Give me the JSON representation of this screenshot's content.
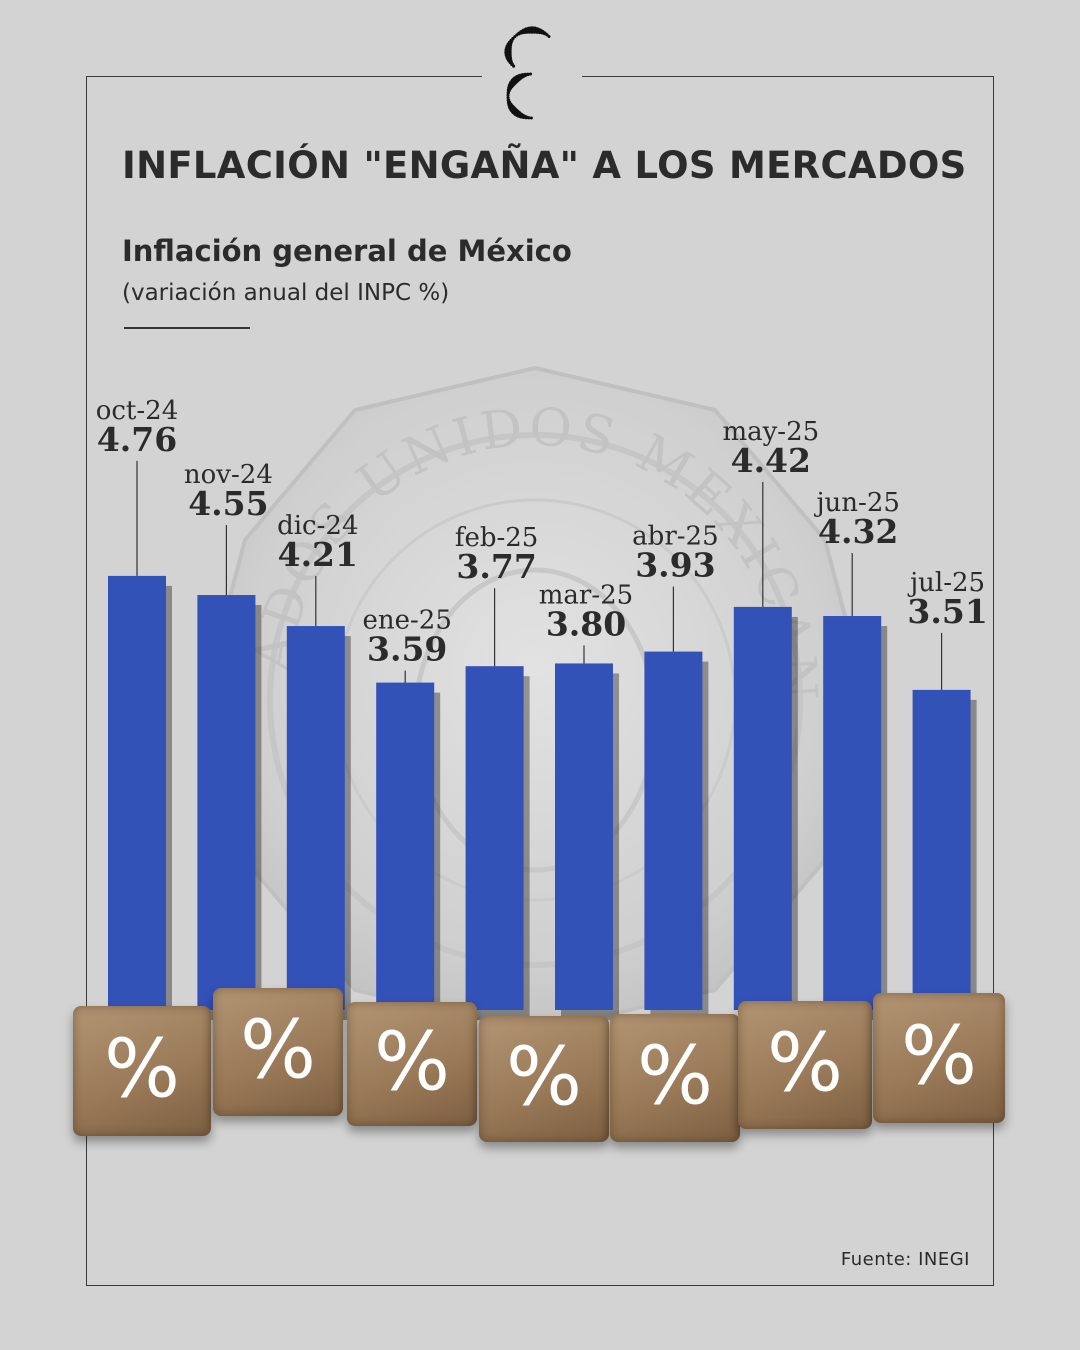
{
  "header": {
    "title": "INFLACIÓN \"ENGAÑA\" A LOS MERCADOS",
    "subtitle": "Inflación general de México",
    "note": "(variación anual del INPC %)"
  },
  "coin_text": "ESTADOS UNIDOS MEXICANOS",
  "cube_symbol": "%",
  "source": "Fuente: INEGI",
  "colors": {
    "bar": "#3352b8",
    "background": "#d3d3d3",
    "text": "#2b2b2b"
  },
  "chart_data": {
    "type": "bar",
    "title": "Inflación general de México",
    "ylabel": "variación anual del INPC %",
    "categories": [
      "oct-24",
      "nov-24",
      "dic-24",
      "ene-25",
      "feb-25",
      "mar-25",
      "abr-25",
      "may-25",
      "jun-25",
      "jul-25"
    ],
    "values": [
      4.76,
      4.55,
      4.21,
      3.59,
      3.77,
      3.8,
      3.93,
      4.42,
      4.32,
      3.51
    ],
    "value_labels": [
      "4.76",
      "4.55",
      "4.21",
      "3.59",
      "3.77",
      "3.80",
      "3.93",
      "4.42",
      "4.32",
      "3.51"
    ]
  }
}
